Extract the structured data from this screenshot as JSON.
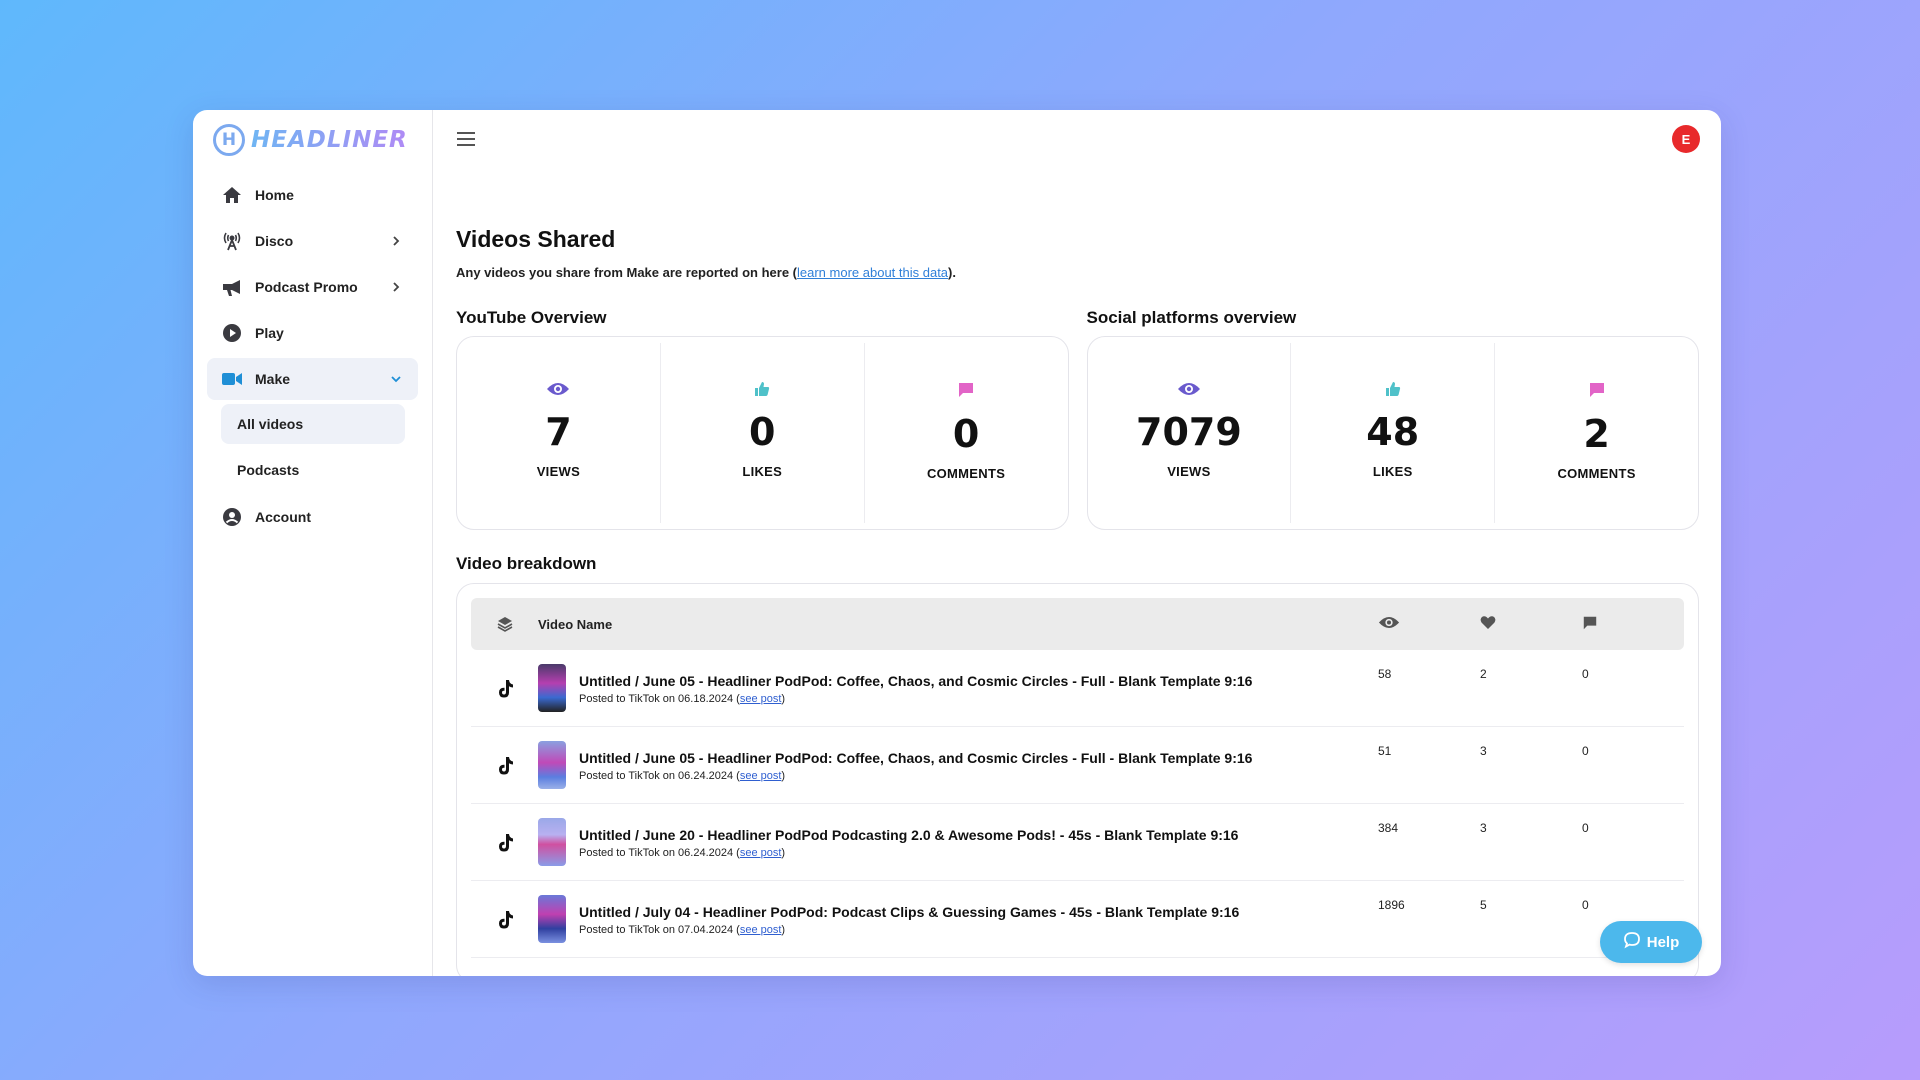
{
  "brand": {
    "name": "HEADLINER",
    "mark": "H"
  },
  "sidebar": {
    "items": [
      {
        "label": "Home",
        "icon": "home-icon"
      },
      {
        "label": "Disco",
        "icon": "broadcast-icon"
      },
      {
        "label": "Podcast Promo",
        "icon": "megaphone-icon"
      },
      {
        "label": "Play",
        "icon": "play-circle-icon"
      },
      {
        "label": "Make",
        "icon": "video-camera-icon"
      },
      {
        "label": "Account",
        "icon": "user-circle-icon"
      }
    ],
    "make_subitems": [
      {
        "label": "All videos"
      },
      {
        "label": "Podcasts"
      }
    ]
  },
  "header": {
    "avatar_initial": "E"
  },
  "page": {
    "title": "Videos Shared",
    "subtitle_prefix": "Any videos you share from Make are reported on here (",
    "subtitle_link": "learn more about this data",
    "subtitle_suffix": ")."
  },
  "youtube": {
    "title": "YouTube Overview",
    "views": "7",
    "views_label": "VIEWS",
    "likes": "0",
    "likes_label": "LIKES",
    "comments": "0",
    "comments_label": "COMMENTS"
  },
  "social": {
    "title": "Social platforms overview",
    "views": "7079",
    "views_label": "VIEWS",
    "likes": "48",
    "likes_label": "LIKES",
    "comments": "2",
    "comments_label": "COMMENTS"
  },
  "breakdown": {
    "title": "Video breakdown",
    "col_name": "Video Name",
    "rows": [
      {
        "name": "Untitled / June 05 - Headliner PodPod: Coffee, Chaos, and Cosmic Circles - Full - Blank Template 9:16",
        "posted": "Posted to TikTok on 06.18.2024 (",
        "link": "see post",
        "close": ")",
        "views": "58",
        "likes": "2",
        "comments": "0"
      },
      {
        "name": "Untitled / June 05 - Headliner PodPod: Coffee, Chaos, and Cosmic Circles - Full - Blank Template 9:16",
        "posted": "Posted to TikTok on 06.24.2024 (",
        "link": "see post",
        "close": ")",
        "views": "51",
        "likes": "3",
        "comments": "0"
      },
      {
        "name": "Untitled / June 20 - Headliner PodPod Podcasting 2.0 & Awesome Pods! - 45s - Blank Template 9:16",
        "posted": "Posted to TikTok on 06.24.2024 (",
        "link": "see post",
        "close": ")",
        "views": "384",
        "likes": "3",
        "comments": "0"
      },
      {
        "name": "Untitled / July 04 - Headliner PodPod: Podcast Clips & Guessing Games - 45s - Blank Template 9:16",
        "posted": "Posted to TikTok on 07.04.2024 (",
        "link": "see post",
        "close": ")",
        "views": "1896",
        "likes": "5",
        "comments": "0"
      }
    ]
  },
  "help": {
    "label": "Help"
  },
  "colors": {
    "views_icon": "#6a5acd",
    "likes_icon": "#4fc1c9",
    "comments_icon": "#e264c7",
    "help_button": "#4cb8ec",
    "avatar": "#e8292b"
  }
}
